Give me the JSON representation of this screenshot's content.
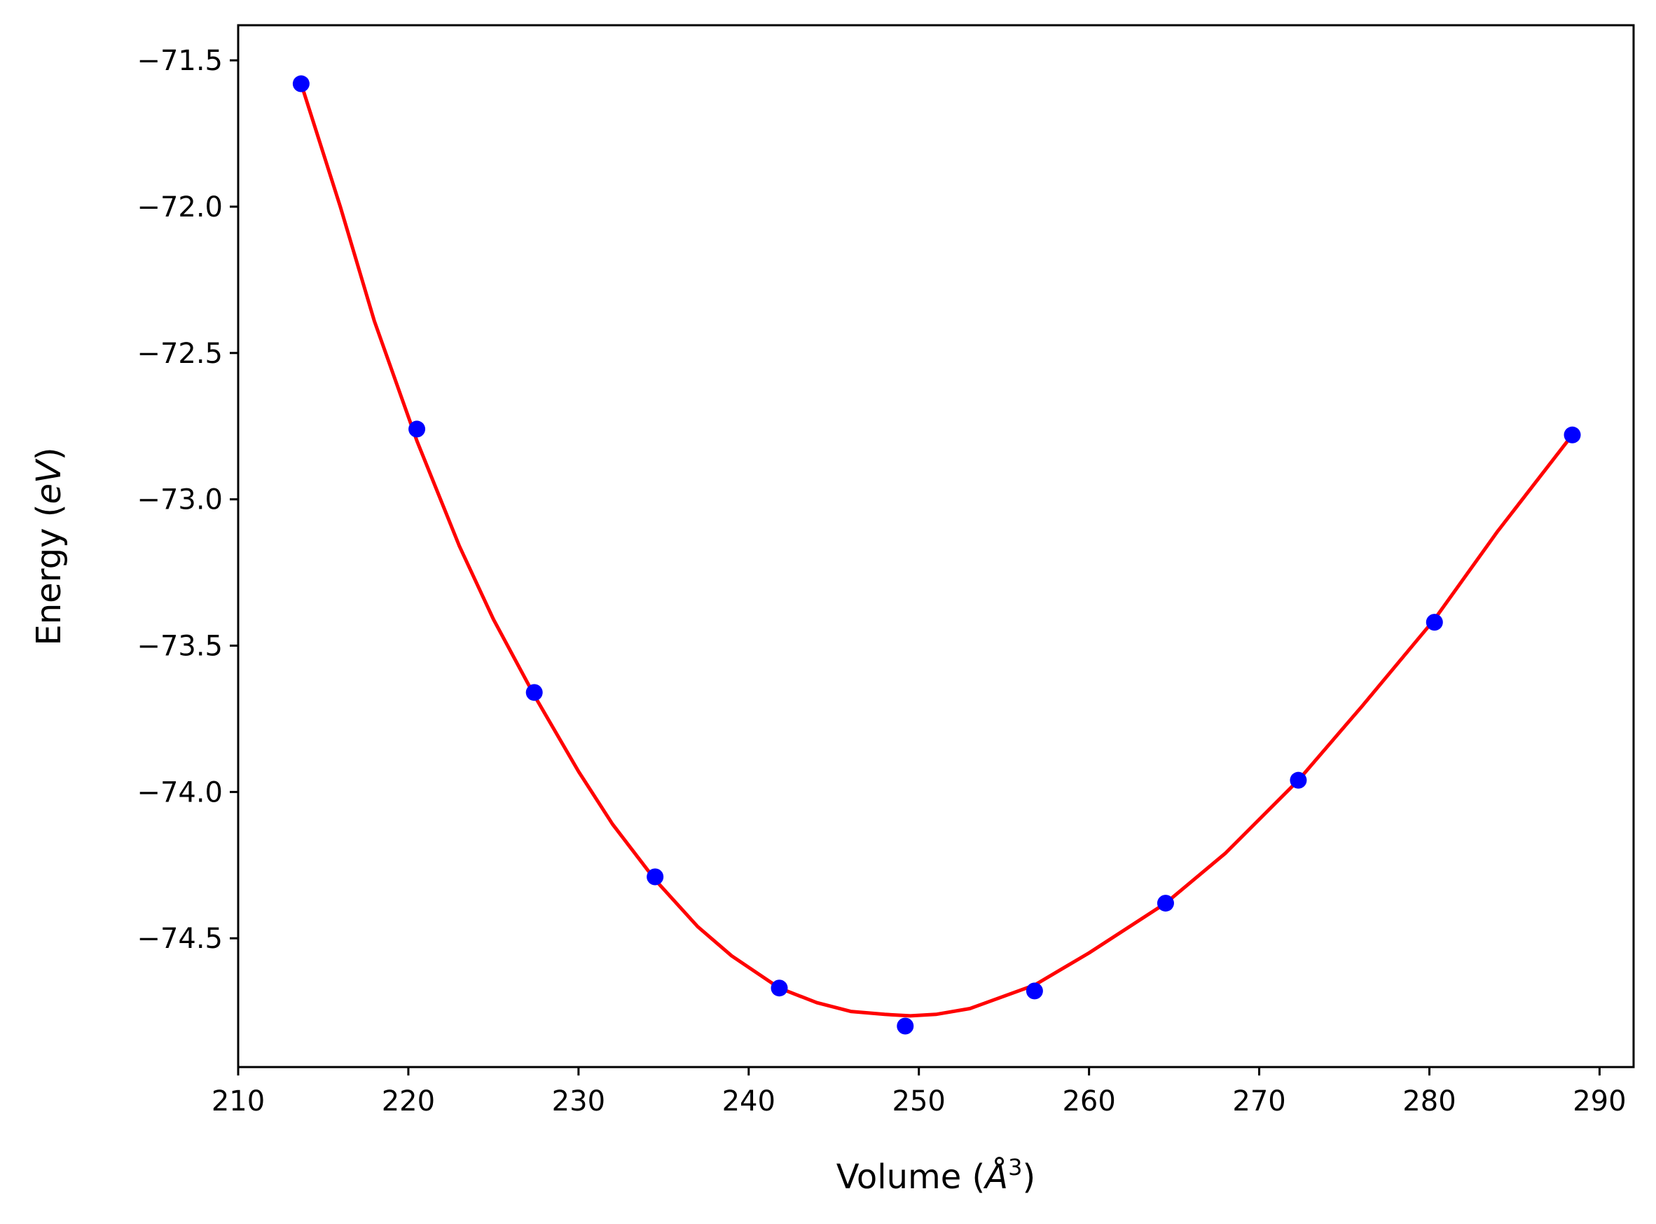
{
  "chart_data": {
    "type": "scatter",
    "title": "",
    "xlabel": "Volume (",
    "xlabel_unit": "Å",
    "xlabel_exponent": "3",
    "xlabel_close": ")",
    "ylabel": "Energy (",
    "ylabel_unit": "eV",
    "ylabel_close": ")",
    "xlim": [
      210,
      292
    ],
    "ylim": [
      -74.94,
      -71.38
    ],
    "xticks": [
      210,
      220,
      230,
      240,
      250,
      260,
      270,
      280,
      290
    ],
    "yticks": [
      -71.5,
      -72.0,
      -72.5,
      -73.0,
      -73.5,
      -74.0,
      -74.5
    ],
    "ytick_labels": [
      "−71.5",
      "−72.0",
      "−72.5",
      "−73.0",
      "−73.5",
      "−74.0",
      "−74.5"
    ],
    "grid": false,
    "series": [
      {
        "kind": "points",
        "color": "#0000ff",
        "x": [
          213.7,
          220.5,
          227.4,
          234.5,
          241.8,
          249.2,
          256.8,
          264.5,
          272.3,
          280.3,
          288.4
        ],
        "y": [
          -71.58,
          -72.76,
          -73.66,
          -74.29,
          -74.67,
          -74.8,
          -74.68,
          -74.38,
          -73.96,
          -73.42,
          -72.78
        ]
      },
      {
        "kind": "fit-curve",
        "color": "#ff0000",
        "x": [
          213.7,
          216.0,
          218.0,
          220.5,
          223.0,
          225.0,
          227.4,
          230.0,
          232.0,
          234.5,
          237.0,
          239.0,
          241.8,
          244.0,
          246.0,
          248.0,
          249.5,
          251.0,
          253.0,
          256.8,
          260.0,
          264.5,
          268.0,
          272.3,
          276.0,
          280.3,
          284.0,
          288.4
        ],
        "y": [
          -71.58,
          -72.0,
          -72.39,
          -72.8,
          -73.16,
          -73.41,
          -73.67,
          -73.93,
          -74.11,
          -74.3,
          -74.46,
          -74.56,
          -74.67,
          -74.72,
          -74.75,
          -74.76,
          -74.765,
          -74.76,
          -74.74,
          -74.66,
          -74.55,
          -74.38,
          -74.21,
          -73.96,
          -73.71,
          -73.41,
          -73.11,
          -72.78
        ]
      }
    ]
  }
}
